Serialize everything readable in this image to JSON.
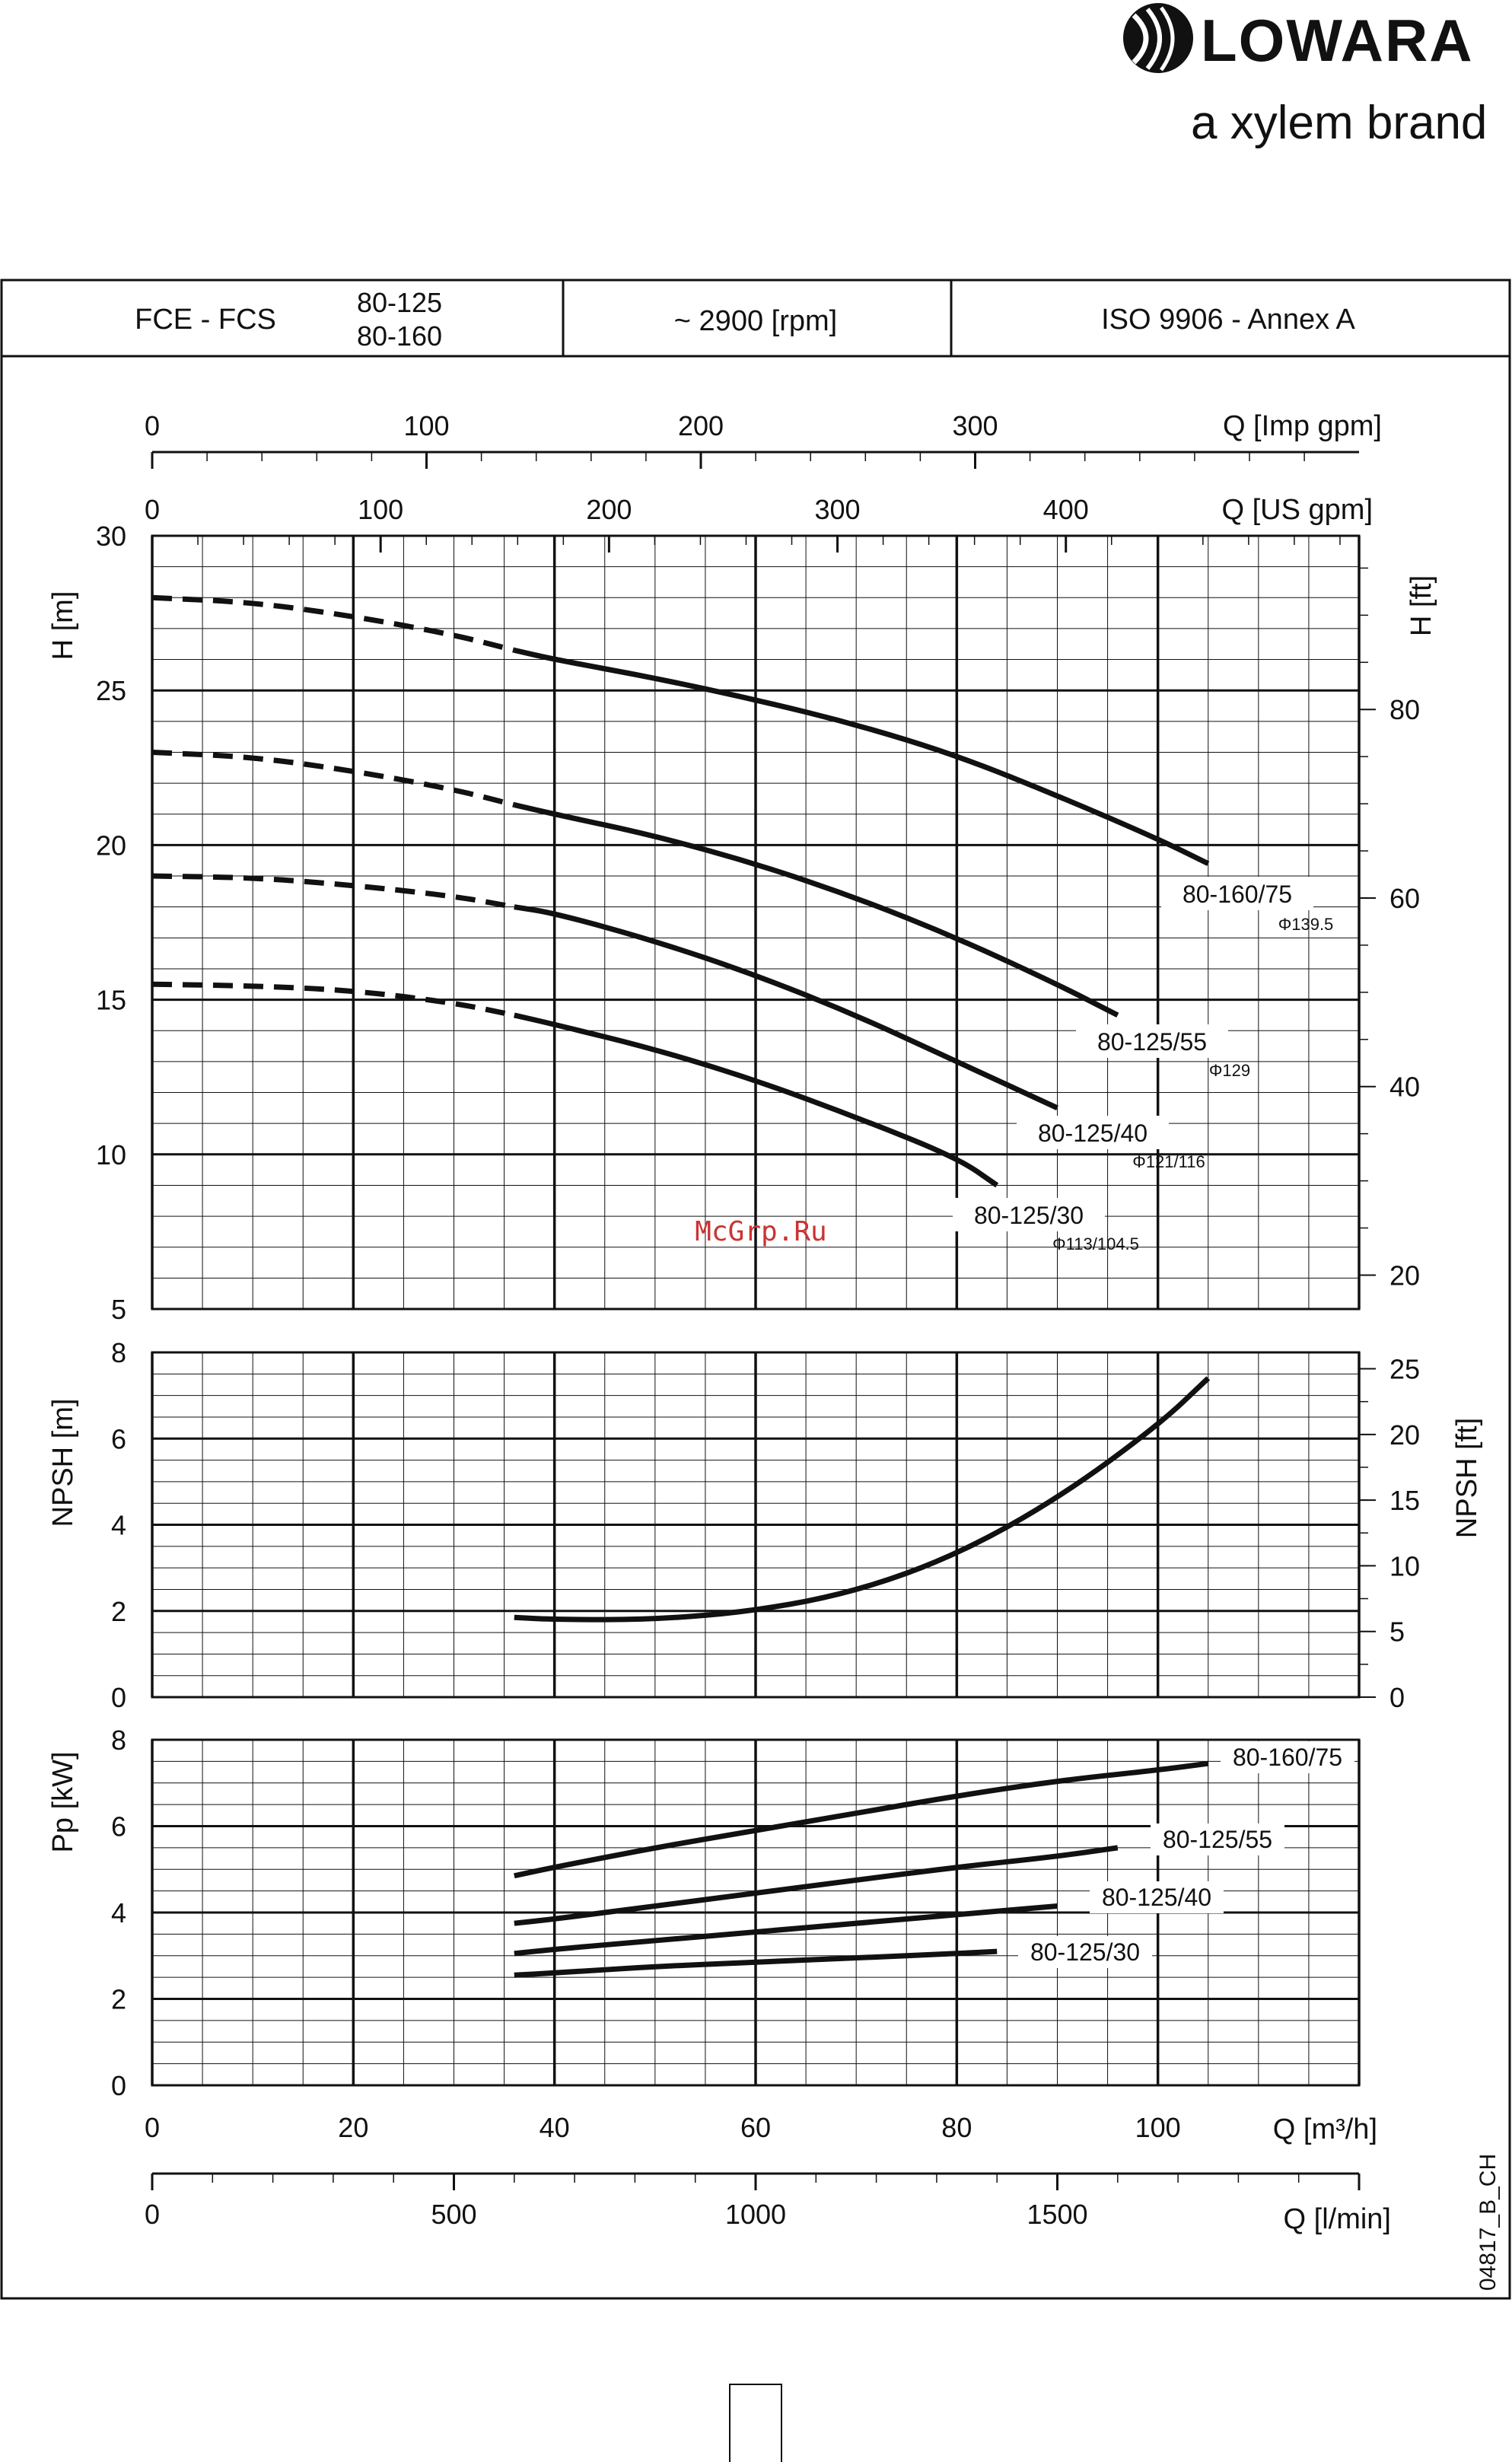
{
  "brand": {
    "logo_text": "LOWARA",
    "tagline": "a xylem brand"
  },
  "header": {
    "model": "FCE - FCS",
    "sizes": [
      "80-125",
      "80-160"
    ],
    "speed": "~ 2900 [rpm]",
    "standard": "ISO 9906 - Annex A"
  },
  "axes": {
    "imp_gpm": {
      "label": "Q [Imp gpm]",
      "ticks": [
        "0",
        "100",
        "200",
        "300"
      ]
    },
    "us_gpm": {
      "label": "Q [US gpm]",
      "ticks": [
        "0",
        "100",
        "200",
        "300",
        "400"
      ]
    },
    "m3h": {
      "label": "Q [m³/h]",
      "ticks": [
        "0",
        "20",
        "40",
        "60",
        "80",
        "100"
      ]
    },
    "lmin": {
      "label": "Q [l/min]",
      "ticks": [
        "0",
        "500",
        "1000",
        "1500"
      ]
    }
  },
  "watermark": "McGrp.Ru",
  "doc_code": "04817_B_CH",
  "chart_data": [
    {
      "type": "line",
      "panel": "head",
      "ylabel": "H [m]",
      "ylabel_right": "H [ft]",
      "xlim": [
        0,
        120
      ],
      "ylim": [
        5,
        30
      ],
      "yticks": [
        5,
        10,
        15,
        20,
        25,
        30
      ],
      "yticks_right": [
        20,
        40,
        60,
        80
      ],
      "series": [
        {
          "name": "80-160/75",
          "label2": "Φ139.5",
          "x": [
            0,
            10,
            20,
            30,
            36,
            40,
            50,
            60,
            70,
            80,
            90,
            100,
            105
          ],
          "y": [
            28,
            27.85,
            27.4,
            26.8,
            26.3,
            26.0,
            25.4,
            24.7,
            23.9,
            22.9,
            21.6,
            20.2,
            19.4
          ]
        },
        {
          "name": "80-125/55",
          "label2": "Φ129",
          "x": [
            0,
            10,
            20,
            30,
            36,
            40,
            50,
            60,
            70,
            80,
            90,
            96
          ],
          "y": [
            23,
            22.85,
            22.4,
            21.8,
            21.3,
            21.0,
            20.3,
            19.4,
            18.3,
            17.0,
            15.5,
            14.5
          ]
        },
        {
          "name": "80-125/40",
          "label2": "Φ121/116",
          "x": [
            0,
            10,
            20,
            30,
            36,
            40,
            50,
            60,
            70,
            80,
            90
          ],
          "y": [
            19,
            18.95,
            18.7,
            18.35,
            18.0,
            17.8,
            16.9,
            15.8,
            14.5,
            13.0,
            11.5
          ]
        },
        {
          "name": "80-125/30",
          "label2": "Φ113/104.5",
          "x": [
            0,
            10,
            20,
            30,
            36,
            40,
            50,
            60,
            70,
            80,
            84
          ],
          "y": [
            15.5,
            15.45,
            15.3,
            14.9,
            14.5,
            14.2,
            13.4,
            12.4,
            11.2,
            9.9,
            9.0
          ]
        }
      ]
    },
    {
      "type": "line",
      "panel": "npsh",
      "ylabel": "NPSH [m]",
      "ylabel_right": "NPSH [ft]",
      "xlim": [
        0,
        120
      ],
      "ylim": [
        0,
        8
      ],
      "yticks": [
        0,
        2,
        4,
        6,
        8
      ],
      "yticks_right": [
        0,
        5,
        10,
        15,
        20,
        25
      ],
      "series": [
        {
          "x": [
            36,
            40,
            50,
            60,
            70,
            80,
            90,
            100,
            105
          ],
          "y": [
            1.85,
            1.8,
            1.8,
            2.0,
            2.45,
            3.3,
            4.6,
            6.3,
            7.4
          ]
        }
      ]
    },
    {
      "type": "line",
      "panel": "power",
      "ylabel": "Pp [kW]",
      "xlim": [
        0,
        120
      ],
      "ylim": [
        0,
        8
      ],
      "yticks": [
        0,
        2,
        4,
        6,
        8
      ],
      "xlabel": "Q [m³/h]",
      "series": [
        {
          "name": "80-160/75",
          "x": [
            36,
            40,
            50,
            60,
            70,
            80,
            90,
            100,
            105
          ],
          "y": [
            4.85,
            5.05,
            5.5,
            5.9,
            6.3,
            6.7,
            7.05,
            7.3,
            7.45
          ]
        },
        {
          "name": "80-125/55",
          "x": [
            36,
            40,
            50,
            60,
            70,
            80,
            90,
            96
          ],
          "y": [
            3.75,
            3.85,
            4.15,
            4.45,
            4.75,
            5.05,
            5.3,
            5.5
          ]
        },
        {
          "name": "80-125/40",
          "x": [
            36,
            40,
            50,
            60,
            70,
            80,
            90
          ],
          "y": [
            3.05,
            3.15,
            3.35,
            3.55,
            3.75,
            3.95,
            4.15
          ]
        },
        {
          "name": "80-125/30",
          "x": [
            36,
            40,
            50,
            60,
            70,
            80,
            84
          ],
          "y": [
            2.55,
            2.6,
            2.75,
            2.85,
            2.95,
            3.05,
            3.1
          ]
        }
      ]
    }
  ]
}
